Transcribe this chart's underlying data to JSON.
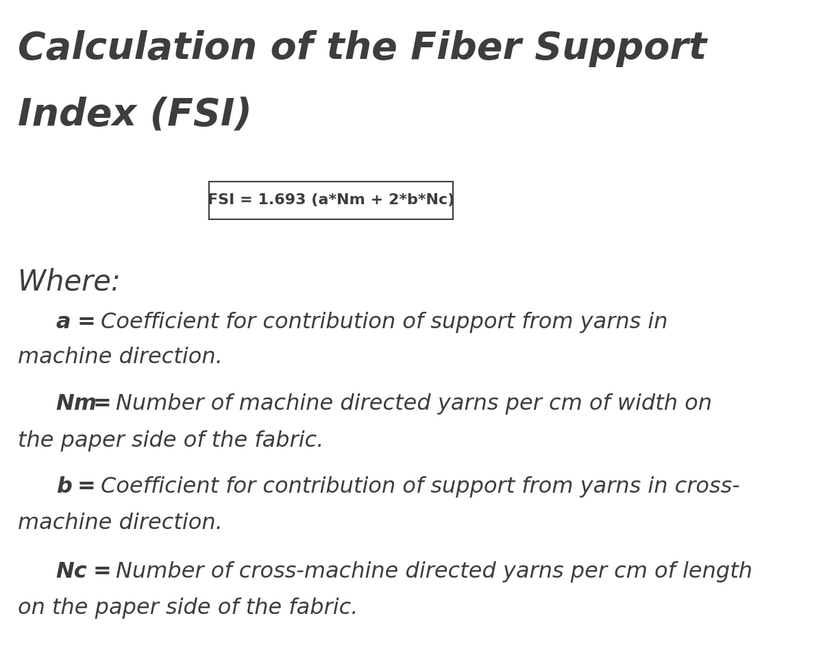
{
  "title_line1": "Calculation of the Fiber Support",
  "title_line2": "Index (FSI)",
  "formula": "FSI = 1.693 (a*Nm + 2*b*Nc)",
  "where_label": "Where:",
  "definitions": [
    {
      "var": "a",
      "eq": " =  ",
      "desc_line1": "Coefficient for contribution of support from yarns in",
      "desc_line2": "machine direction."
    },
    {
      "var": "Nm",
      "eq": " =  ",
      "desc_line1": "Number of machine directed yarns per cm of width on",
      "desc_line2": "the paper side of the fabric."
    },
    {
      "var": "b",
      "eq": " =  ",
      "desc_line1": "Coefficient for contribution of support from yarns in cross-",
      "desc_line2": "machine direction."
    },
    {
      "var": "Nc",
      "eq": "  =  ",
      "desc_line1": "Number of cross-machine directed yarns per cm of length",
      "desc_line2": "on the paper side of the fabric."
    }
  ],
  "bg_color": "#ffffff",
  "text_color": "#3d3d3d",
  "title_fontsize": 40,
  "formula_fontsize": 16,
  "where_fontsize": 30,
  "body_fontsize": 23,
  "fig_width": 12.01,
  "fig_height": 9.69,
  "dpi": 100
}
